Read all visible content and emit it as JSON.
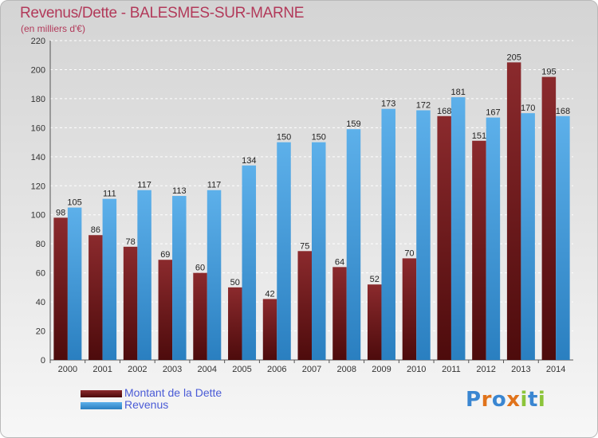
{
  "title": "Revenus/Dette - BALESMES-SUR-MARNE",
  "unit": "(en milliers d'€)",
  "colors": {
    "dette": "#7a1f22",
    "revenus": "#3e9de0",
    "title": "#b23a5a",
    "legend_text": "#4a5bd6"
  },
  "logo": {
    "text": [
      "P",
      "r",
      "o",
      "x",
      "i",
      "t",
      "i"
    ],
    "colors": [
      "#3a86d1",
      "#e0731b",
      "#3a86d1",
      "#e0731b",
      "#8cc43a",
      "#3a86d1",
      "#8cc43a"
    ]
  },
  "legend": [
    {
      "label": "Montant de la Dette"
    },
    {
      "label": "Revenus"
    }
  ],
  "chart_data": {
    "type": "bar",
    "title": "Revenus/Dette - BALESMES-SUR-MARNE",
    "ylabel": "(en milliers d'€)",
    "categories": [
      "2000",
      "2001",
      "2002",
      "2003",
      "2004",
      "2005",
      "2006",
      "2007",
      "2008",
      "2009",
      "2010",
      "2011",
      "2012",
      "2013",
      "2014"
    ],
    "series": [
      {
        "name": "Montant de la Dette",
        "values": [
          98,
          86,
          78,
          69,
          60,
          50,
          42,
          75,
          64,
          52,
          70,
          168,
          151,
          205,
          195
        ]
      },
      {
        "name": "Revenus",
        "values": [
          105,
          111,
          117,
          113,
          117,
          134,
          150,
          150,
          159,
          173,
          172,
          181,
          167,
          170,
          168
        ]
      }
    ],
    "ylim": [
      0,
      220
    ],
    "yticks": [
      0,
      20,
      40,
      60,
      80,
      100,
      120,
      140,
      160,
      180,
      200,
      220
    ],
    "grid": true,
    "legend_position": "bottom-left"
  }
}
